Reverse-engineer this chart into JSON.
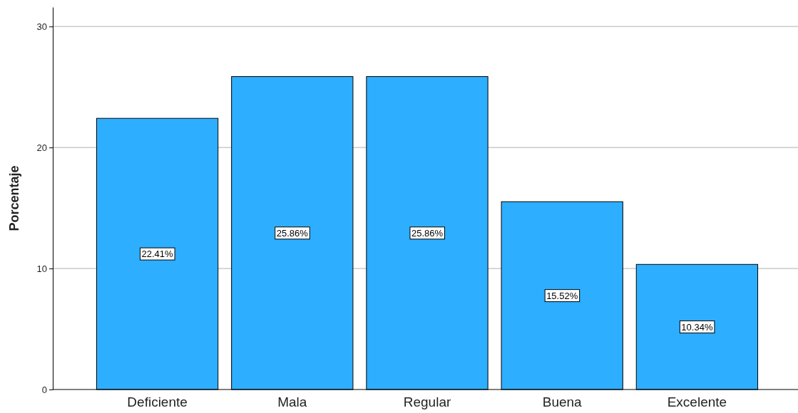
{
  "chart_data": {
    "type": "bar",
    "ylabel": "Porcentaje",
    "categories": [
      "Deficiente",
      "Mala",
      "Regular",
      "Buena",
      "Excelente"
    ],
    "values": [
      22.41,
      25.86,
      25.86,
      15.52,
      10.34
    ],
    "value_labels": [
      "22.41%",
      "25.86%",
      "25.86%",
      "15.52%",
      "10.34%"
    ],
    "color": "#2eaeff",
    "ylim": [
      0,
      31.6
    ],
    "yticks": [
      0,
      10,
      20,
      30
    ],
    "grid": "y"
  }
}
